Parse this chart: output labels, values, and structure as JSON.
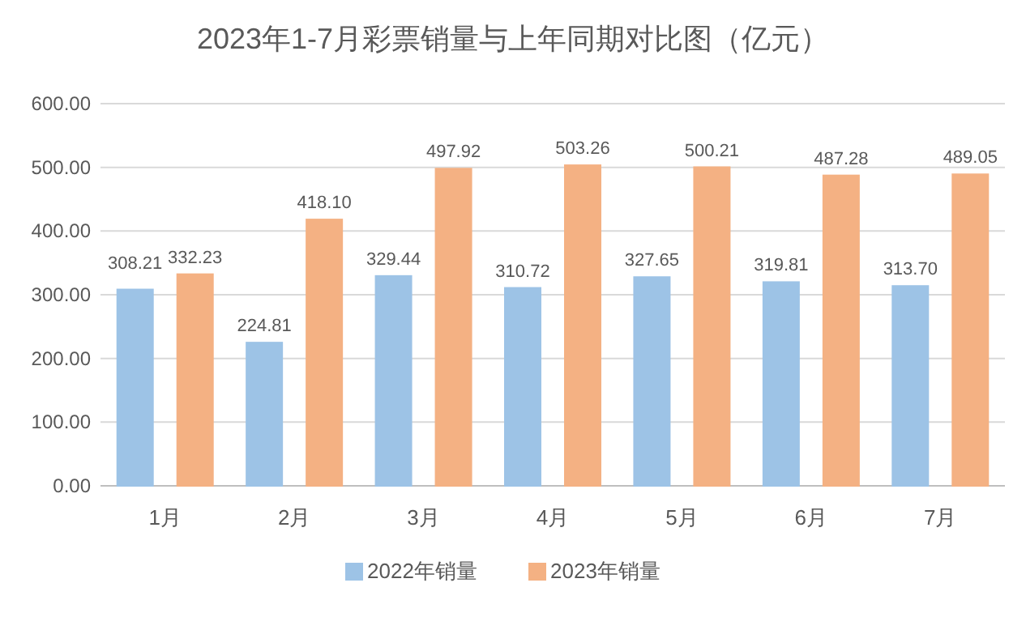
{
  "chart_data": {
    "type": "bar",
    "title": "2023年1-7月彩票销量与上年同期对比图（亿元）",
    "categories": [
      "1月",
      "2月",
      "3月",
      "4月",
      "5月",
      "6月",
      "7月"
    ],
    "series": [
      {
        "name": "2022年销量",
        "color": "#9dc3e6",
        "values": [
          308.21,
          224.81,
          329.44,
          310.72,
          327.65,
          319.81,
          313.7
        ],
        "value_labels": [
          "308.21",
          "224.81",
          "329.44",
          "310.72",
          "327.65",
          "319.81",
          "313.70"
        ]
      },
      {
        "name": "2023年销量",
        "color": "#f4b183",
        "values": [
          332.23,
          418.1,
          497.92,
          503.26,
          500.21,
          487.28,
          489.05
        ],
        "value_labels": [
          "332.23",
          "418.10",
          "497.92",
          "503.26",
          "500.21",
          "487.28",
          "489.05"
        ]
      }
    ],
    "ylim": [
      0,
      600
    ],
    "yticks": [
      {
        "value": 0,
        "label": "0.00"
      },
      {
        "value": 100,
        "label": "100.00"
      },
      {
        "value": 200,
        "label": "200.00"
      },
      {
        "value": 300,
        "label": "300.00"
      },
      {
        "value": 400,
        "label": "400.00"
      },
      {
        "value": 500,
        "label": "500.00"
      },
      {
        "value": 600,
        "label": "600.00"
      }
    ],
    "grid": "y",
    "legend": "bottom"
  }
}
